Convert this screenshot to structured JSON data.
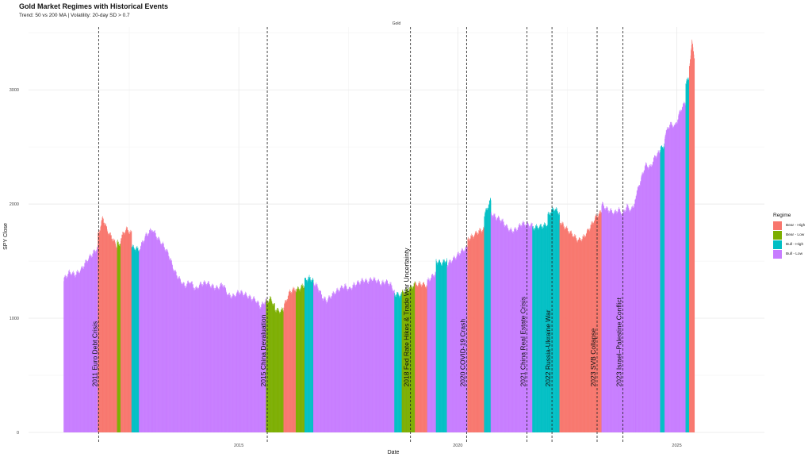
{
  "title": "Gold Market Regimes with Historical Events",
  "subtitle": "Trend: 50 vs 200 MA | Volatility: 20-day SD > 0.7",
  "facet_label": "Gold",
  "chart_data": {
    "type": "bar",
    "xlabel": "Date",
    "ylabel": "SPY Close",
    "xlim": [
      2010.2,
      2027.0
    ],
    "ylim": [
      0,
      3550
    ],
    "x_ticks": [
      2015,
      2020,
      2025
    ],
    "y_ticks": [
      0,
      1000,
      2000,
      3000
    ],
    "grid": true,
    "legend": {
      "title": "Regime",
      "position": "right",
      "entries": [
        {
          "name": "Bear - High",
          "color": "#F8766D"
        },
        {
          "name": "Bear - Low",
          "color": "#7CAE00"
        },
        {
          "name": "Bull - High",
          "color": "#00BFC4"
        },
        {
          "name": "Bull - Low",
          "color": "#C77CFF"
        }
      ]
    },
    "segments": [
      {
        "start": 2011.0,
        "end": 2011.78,
        "regime": "Bull - Low",
        "values": [
          1340,
          1400,
          1380,
          1420,
          1500,
          1560,
          1620
        ]
      },
      {
        "start": 2011.78,
        "end": 2012.22,
        "regime": "Bear - High",
        "values": [
          1720,
          1880,
          1760,
          1700,
          1620
        ]
      },
      {
        "start": 2012.22,
        "end": 2012.3,
        "regime": "Bear - Low",
        "values": [
          1660,
          1650
        ]
      },
      {
        "start": 2012.3,
        "end": 2012.55,
        "regime": "Bear - High",
        "values": [
          1700,
          1780,
          1740
        ]
      },
      {
        "start": 2012.55,
        "end": 2012.72,
        "regime": "Bull - High",
        "values": [
          1620,
          1600
        ]
      },
      {
        "start": 2012.72,
        "end": 2013.02,
        "regime": "Bull - Low",
        "values": [
          1600,
          1720,
          1780
        ]
      },
      {
        "start": 2013.02,
        "end": 2015.62,
        "regime": "Bull - Low",
        "values": [
          1780,
          1700,
          1640,
          1560,
          1420,
          1340,
          1280,
          1320,
          1250,
          1300,
          1310,
          1280,
          1260,
          1300,
          1200,
          1190,
          1230,
          1210,
          1180,
          1160,
          1100,
          1160
        ]
      },
      {
        "start": 2015.62,
        "end": 2015.82,
        "regime": "Bear - Low",
        "values": [
          1140,
          1170,
          1100
        ]
      },
      {
        "start": 2015.82,
        "end": 2016.02,
        "regime": "Bear - Low",
        "values": [
          1080,
          1060,
          1070
        ]
      },
      {
        "start": 2016.02,
        "end": 2016.3,
        "regime": "Bear - High",
        "values": [
          1100,
          1230,
          1260
        ]
      },
      {
        "start": 2016.3,
        "end": 2016.5,
        "regime": "Bear - Low",
        "values": [
          1240,
          1290
        ]
      },
      {
        "start": 2016.5,
        "end": 2016.7,
        "regime": "Bull - High",
        "values": [
          1330,
          1350,
          1330
        ]
      },
      {
        "start": 2016.7,
        "end": 2018.55,
        "regime": "Bull - Low",
        "values": [
          1310,
          1270,
          1180,
          1150,
          1200,
          1230,
          1260,
          1280,
          1250,
          1290,
          1310,
          1330,
          1320,
          1340,
          1330,
          1300,
          1320,
          1300,
          1230
        ]
      },
      {
        "start": 2018.55,
        "end": 2018.72,
        "regime": "Bull - High",
        "values": [
          1210,
          1200
        ]
      },
      {
        "start": 2018.72,
        "end": 2019.02,
        "regime": "Bear - Low",
        "values": [
          1220,
          1250,
          1300
        ]
      },
      {
        "start": 2019.02,
        "end": 2019.3,
        "regime": "Bear - High",
        "values": [
          1290,
          1300,
          1280
        ]
      },
      {
        "start": 2019.3,
        "end": 2019.5,
        "regime": "Bull - Low",
        "values": [
          1320,
          1400
        ]
      },
      {
        "start": 2019.5,
        "end": 2019.75,
        "regime": "Bull - High",
        "values": [
          1500,
          1480,
          1510
        ]
      },
      {
        "start": 2019.75,
        "end": 2020.22,
        "regime": "Bull - Low",
        "values": [
          1470,
          1520,
          1580,
          1620
        ]
      },
      {
        "start": 2020.22,
        "end": 2020.6,
        "regime": "Bear - High",
        "values": [
          1690,
          1720,
          1760,
          1780
        ]
      },
      {
        "start": 2020.6,
        "end": 2020.75,
        "regime": "Bull - High",
        "values": [
          1900,
          2040
        ]
      },
      {
        "start": 2020.75,
        "end": 2021.7,
        "regime": "Bull - Low",
        "values": [
          1920,
          1880,
          1860,
          1800,
          1760,
          1780,
          1830,
          1820,
          1810
        ]
      },
      {
        "start": 2021.7,
        "end": 2022.05,
        "regime": "Bull - High",
        "values": [
          1790,
          1800,
          1820
        ]
      },
      {
        "start": 2022.05,
        "end": 2022.32,
        "regime": "Bull - High",
        "values": [
          1900,
          1960,
          1920
        ]
      },
      {
        "start": 2022.32,
        "end": 2023.28,
        "regime": "Bear - High",
        "values": [
          1850,
          1800,
          1760,
          1720,
          1680,
          1700,
          1760,
          1830,
          1900,
          1930
        ]
      },
      {
        "start": 2023.28,
        "end": 2024.05,
        "regime": "Bull - Low",
        "values": [
          2000,
          1960,
          1940,
          1920,
          1950,
          1910,
          1980,
          1940,
          2030
        ]
      },
      {
        "start": 2024.05,
        "end": 2024.62,
        "regime": "Bull - Low",
        "values": [
          2060,
          2200,
          2340,
          2320,
          2420,
          2460
        ]
      },
      {
        "start": 2024.62,
        "end": 2024.72,
        "regime": "Bull - High",
        "values": [
          2480,
          2520
        ]
      },
      {
        "start": 2024.72,
        "end": 2025.2,
        "regime": "Bull - Low",
        "values": [
          2600,
          2700,
          2680,
          2820,
          2900
        ]
      },
      {
        "start": 2025.2,
        "end": 2025.28,
        "regime": "Bull - High",
        "values": [
          3050,
          3120
        ]
      },
      {
        "start": 2025.28,
        "end": 2025.4,
        "regime": "Bear - High",
        "values": [
          3200,
          3420,
          3280
        ]
      }
    ],
    "events": [
      {
        "x": 2011.8,
        "label": "2011 Euro Debt Crisis"
      },
      {
        "x": 2015.65,
        "label": "2015 China Devaluation"
      },
      {
        "x": 2018.92,
        "label": "2018 Fed Rate Hikes & Trade War Uncertainty"
      },
      {
        "x": 2020.2,
        "label": "2020 COVID-19 Crash"
      },
      {
        "x": 2021.58,
        "label": "2021 China Real Estate Crisis"
      },
      {
        "x": 2022.15,
        "label": "2022 Russia-Ukraine War"
      },
      {
        "x": 2023.18,
        "label": "2023 SVB Collapse"
      },
      {
        "x": 2023.77,
        "label": "2023 Israel–Palestine Conflict"
      }
    ]
  }
}
